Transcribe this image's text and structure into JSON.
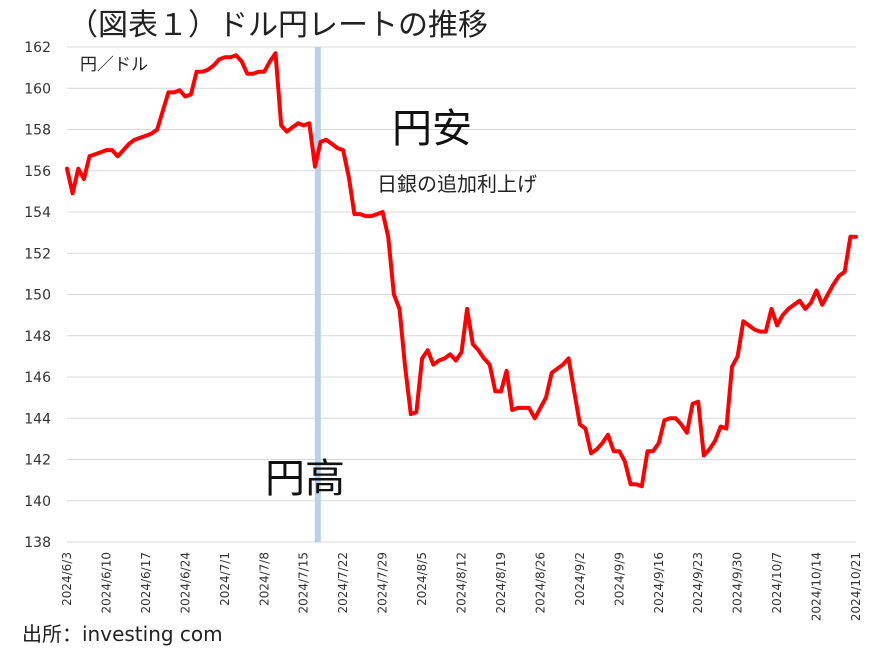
{
  "source": "出所：investing com",
  "chart_data": {
    "type": "line",
    "title": "（図表１）ドル円レートの推移",
    "ylabel": "円／ドル",
    "xlabel": "",
    "ylim": [
      138,
      162
    ],
    "yticks": [
      138,
      140,
      142,
      144,
      146,
      148,
      150,
      152,
      154,
      156,
      158,
      160,
      162
    ],
    "xtick_labels": [
      "2024/6/3",
      "2024/6/10",
      "2024/6/17",
      "2024/6/24",
      "2024/7/1",
      "2024/7/8",
      "2024/7/15",
      "2024/7/22",
      "2024/7/29",
      "2024/8/5",
      "2024/8/12",
      "2024/8/19",
      "2024/8/26",
      "2024/9/2",
      "2024/9/9",
      "2024/9/16",
      "2024/9/23",
      "2024/9/30",
      "2024/10/7",
      "2024/10/14",
      "2024/10/21"
    ],
    "grid": true,
    "line_color": "#ff0000",
    "marker_color": "#b9d0ea",
    "marker_at_index": 44.5,
    "annotations": {
      "upper": "円安",
      "lower": "円高",
      "event": "日銀の追加利上げ"
    },
    "series": [
      {
        "values": [
          156.1,
          154.9,
          156.1,
          155.6,
          156.7,
          156.8,
          156.9,
          157.0,
          157.0,
          156.7,
          157.0,
          157.3,
          157.5,
          157.6,
          157.7,
          157.8,
          158.0,
          158.9,
          159.8,
          159.8,
          159.9,
          159.6,
          159.7,
          160.8,
          160.8,
          160.9,
          161.1,
          161.4,
          161.5,
          161.5,
          161.6,
          161.3,
          160.7,
          160.7,
          160.8,
          160.8,
          161.3,
          161.7,
          158.2,
          157.9,
          158.1,
          158.3,
          158.2,
          158.3,
          156.2,
          157.4,
          157.5,
          157.3,
          157.1,
          157.0,
          155.7,
          153.9,
          153.9,
          153.8,
          153.8,
          153.9,
          154.0,
          152.8,
          150.0,
          149.3,
          146.5,
          144.2,
          144.3,
          146.9,
          147.3,
          146.6,
          146.8,
          146.9,
          147.1,
          146.8,
          147.2,
          149.3,
          147.6,
          147.3,
          146.9,
          146.6,
          145.3,
          145.3,
          146.3,
          144.4,
          144.5,
          144.5,
          144.5,
          144.0,
          144.5,
          145.0,
          146.2,
          146.4,
          146.6,
          146.9,
          145.3,
          143.7,
          143.5,
          142.3,
          142.5,
          142.8,
          143.2,
          142.4,
          142.4,
          141.9,
          140.8,
          140.8,
          140.7,
          142.4,
          142.4,
          142.8,
          143.9,
          144.0,
          144.0,
          143.7,
          143.3,
          144.7,
          144.8,
          142.2,
          142.5,
          142.9,
          143.6,
          143.5,
          146.5,
          147.0,
          148.7,
          148.5,
          148.3,
          148.2,
          148.2,
          149.3,
          148.5,
          149.0,
          149.3,
          149.5,
          149.7,
          149.3,
          149.6,
          150.2,
          149.5,
          150.0,
          150.5,
          150.9,
          151.1,
          152.8,
          152.8
        ]
      }
    ]
  }
}
